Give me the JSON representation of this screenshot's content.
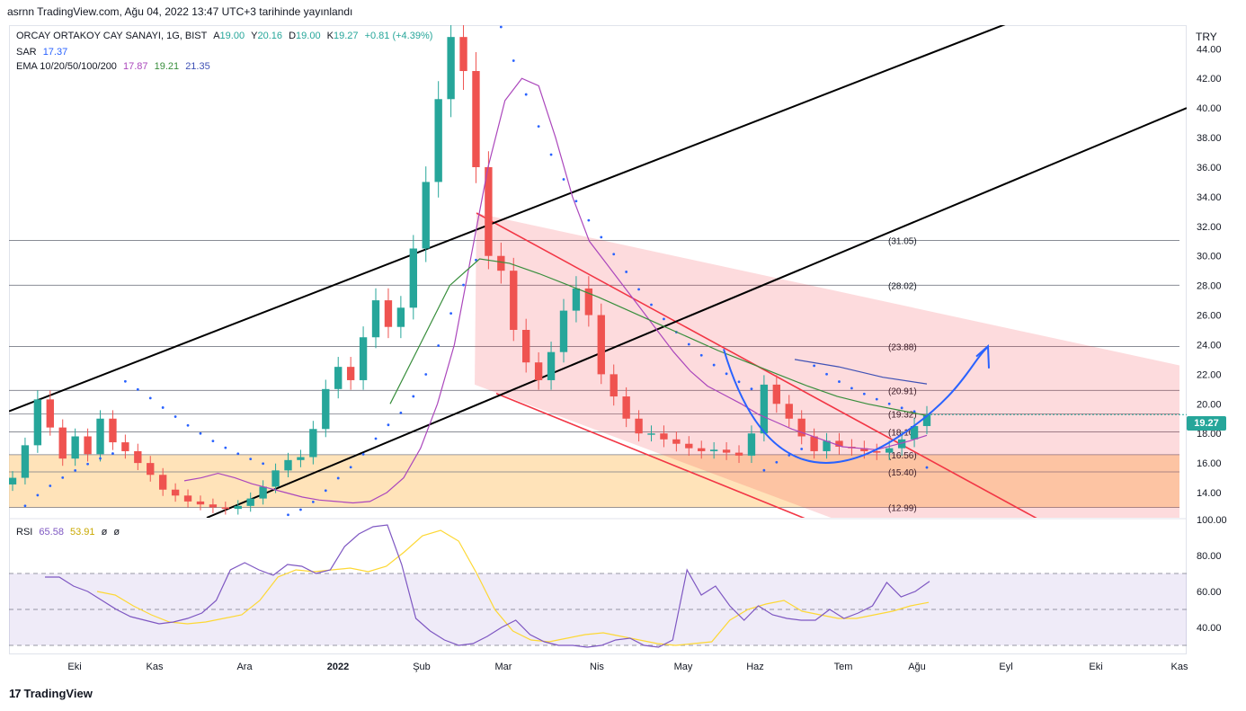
{
  "header": {
    "publish_line": "asrnn TradingView.com, Ağu 04, 2022 13:47 UTC+3 tarihinde yayınlandı"
  },
  "legend": {
    "symbol": "ORCAY ORTAKOY CAY SANAYI, 1G, BIST",
    "ohlc": [
      {
        "label": "A",
        "value": "19.00"
      },
      {
        "label": "Y",
        "value": "20.16"
      },
      {
        "label": "D",
        "value": "19.00"
      },
      {
        "label": "K",
        "value": "19.27"
      }
    ],
    "change": "+0.81 (+4.39%)",
    "sar_label": "SAR",
    "sar_value": "17.37",
    "ema_label": "EMA 10/20/50/100/200",
    "ema_values": [
      "17.87",
      "19.21",
      "21.35"
    ],
    "rsi_label": "RSI",
    "rsi_values": [
      "65.58",
      "53.91",
      "ø",
      "ø"
    ]
  },
  "currency": "TRY",
  "last_price": "19.27",
  "watermark": "TradingView",
  "colors": {
    "up": "#26a69a",
    "down": "#ef5350",
    "sar": "#2962ff",
    "ema_short": "#ab47bc",
    "ema_long": "#388e3c",
    "ema_blue": "#3f51b5",
    "rsi": "#7e57c2",
    "rsi_ma": "#fdd835",
    "channel": "#000000",
    "falling_channel": "#f23645",
    "zone": "#ffcc80",
    "arc": "#2962ff"
  },
  "chart_data": [
    {
      "type": "candlestick",
      "title": "ORCAY ORTAKOY CAY SANAYI, 1G, BIST",
      "ylabel": "TRY",
      "ylim": [
        12.3,
        45.6
      ],
      "x_ticks": [
        "Eki",
        "Kas",
        "Ara",
        "2022",
        "Şub",
        "Mar",
        "Nis",
        "May",
        "Haz",
        "Tem",
        "Ağu",
        "Eyl",
        "Eki",
        "Kas"
      ],
      "y_ticks": [
        14,
        16,
        18,
        20,
        22,
        24,
        26,
        28,
        30,
        32,
        34,
        36,
        38,
        40,
        42,
        44
      ],
      "y_tick_labels": [
        "14.00",
        "16.00",
        "18.00",
        "20.00",
        "22.00",
        "24.00",
        "26.00",
        "28.00",
        "30.00",
        "32.00",
        "34.00",
        "36.00",
        "38.00",
        "40.00",
        "42.00",
        "44.00"
      ],
      "levels": [
        {
          "value": 31.05,
          "label": "(31.05)"
        },
        {
          "value": 28.02,
          "label": "(28.02)"
        },
        {
          "value": 23.88,
          "label": "(23.88)"
        },
        {
          "value": 20.91,
          "label": "(20.91)"
        },
        {
          "value": 19.32,
          "label": "(19.32)"
        },
        {
          "value": 18.1,
          "label": "(18.10)"
        },
        {
          "value": 16.56,
          "label": "(16.56)"
        },
        {
          "value": 15.4,
          "label": "(15.40)"
        },
        {
          "value": 12.99,
          "label": "(12.99)"
        }
      ],
      "series": [
        {
          "name": "Fiyat",
          "kind": "candles",
          "close": [
            15.0,
            17.2,
            20.3,
            18.4,
            16.3,
            17.8,
            16.6,
            19.0,
            17.4,
            16.8,
            16.0,
            15.2,
            14.2,
            13.8,
            13.4,
            13.2,
            13.0,
            12.9,
            13.1,
            13.6,
            14.4,
            15.5,
            16.2,
            16.4,
            18.3,
            21.0,
            22.5,
            21.6,
            24.5,
            27.0,
            25.2,
            26.5,
            30.5,
            35.0,
            40.6,
            44.8,
            42.5,
            36.0,
            30.0,
            29.0,
            25.0,
            22.8,
            21.6,
            23.5,
            26.3,
            27.8,
            26.0,
            22.0,
            20.5,
            19.0,
            18.0,
            18.0,
            17.6,
            17.3,
            17.0,
            16.8,
            16.9,
            16.7,
            16.5,
            18.0,
            21.3,
            20.0,
            19.0,
            17.8,
            16.8,
            17.5,
            17.1,
            17.0,
            16.8,
            16.7,
            17.0,
            17.6,
            18.5,
            19.27
          ]
        },
        {
          "name": "SAR",
          "kind": "dots"
        },
        {
          "name": "EMA 10",
          "kind": "line",
          "values": [
            14.8,
            15.0,
            15.3,
            15.0,
            14.6,
            14.3,
            14.0,
            13.7,
            13.5,
            13.4,
            13.3,
            13.4,
            14.0,
            15.0,
            17.0,
            20.0,
            24.0,
            30.0,
            36.0,
            40.5,
            42.0,
            41.5,
            38.0,
            34.0,
            31.0,
            29.5,
            28.0,
            26.5,
            25.0,
            23.5,
            22.2,
            21.2,
            20.6,
            20.0,
            19.3,
            18.8,
            18.3,
            17.9,
            17.5,
            17.1,
            17.0,
            16.9,
            17.2,
            17.5,
            17.87
          ]
        },
        {
          "name": "EMA 50",
          "kind": "line",
          "values": [
            20.0,
            24.0,
            28.0,
            29.8,
            29.5,
            28.8,
            28.0,
            27.2,
            26.3,
            25.4,
            24.5,
            23.6,
            22.8,
            22.0,
            21.2,
            20.5,
            20.0,
            19.6,
            19.21
          ]
        },
        {
          "name": "EMA 100",
          "kind": "line",
          "values": [
            23.0,
            22.5,
            21.8,
            21.35
          ]
        },
        {
          "name": "EMA 200",
          "kind": "line",
          "values": []
        }
      ]
    },
    {
      "type": "line",
      "title": "RSI",
      "ylim": [
        25,
        100
      ],
      "y_ticks": [
        40,
        60,
        80,
        100
      ],
      "y_tick_labels": [
        "40.00",
        "60.00",
        "80.00",
        "100.00"
      ],
      "band": [
        30,
        70
      ],
      "series": [
        {
          "name": "RSI",
          "values": [
            68,
            68,
            63,
            60,
            55,
            50,
            46,
            44,
            42,
            43,
            45,
            48,
            55,
            72,
            76,
            72,
            69,
            75,
            74,
            70,
            72,
            85,
            92,
            96,
            97,
            75,
            45,
            38,
            33,
            30,
            31,
            35,
            40,
            44,
            36,
            32,
            30,
            30,
            29,
            30,
            33,
            34,
            30,
            29,
            33,
            72,
            58,
            63,
            52,
            44,
            52,
            47,
            45,
            44,
            44,
            50,
            45,
            48,
            52,
            65,
            57,
            60,
            65.58
          ]
        },
        {
          "name": "RSI MA",
          "values": [
            60,
            58,
            52,
            47,
            43,
            42,
            43,
            45,
            47,
            55,
            68,
            72,
            71,
            72,
            73,
            71,
            74,
            82,
            91,
            94,
            88,
            70,
            50,
            38,
            33,
            32,
            34,
            36,
            37,
            35,
            33,
            31,
            30,
            31,
            32,
            44,
            50,
            53,
            55,
            49,
            47,
            45,
            45,
            47,
            49,
            52,
            53.91
          ]
        }
      ]
    }
  ]
}
